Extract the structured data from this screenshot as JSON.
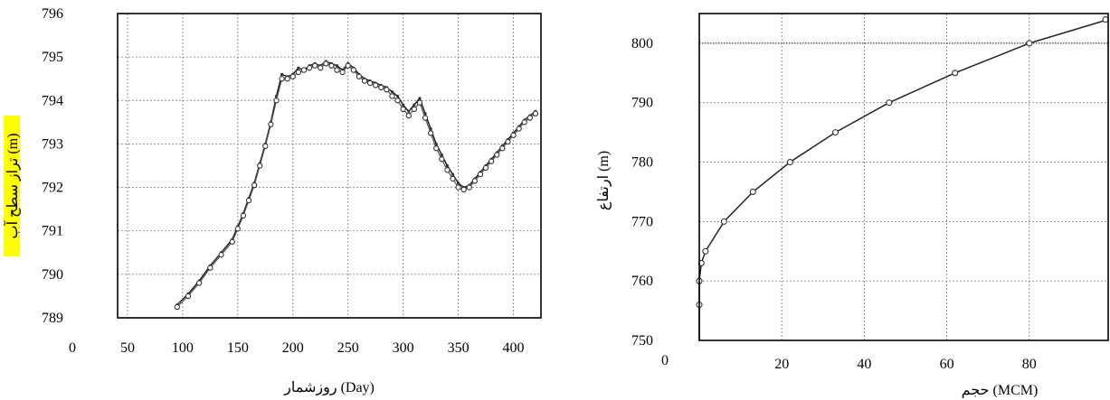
{
  "chart_data": [
    {
      "type": "line",
      "title": "",
      "xlabel": "روزشمار (Day)",
      "ylabel": "تراز سطح آب (m)",
      "ylabel_highlight": "#ffff00",
      "xlim": [
        0,
        425
      ],
      "ylim": [
        789,
        796
      ],
      "x_ticks": [
        0,
        50,
        100,
        150,
        200,
        250,
        300,
        350,
        400
      ],
      "y_ticks": [
        789,
        790,
        791,
        792,
        793,
        794,
        795,
        796
      ],
      "grid": true,
      "series": [
        {
          "x": [
            95,
            105,
            115,
            125,
            135,
            145,
            150,
            155,
            160,
            165,
            170,
            175,
            180,
            185,
            190,
            195,
            200,
            205,
            210,
            215,
            220,
            225,
            230,
            235,
            240,
            245,
            250,
            255,
            260,
            265,
            270,
            275,
            280,
            285,
            290,
            295,
            300,
            305,
            310,
            315,
            320,
            325,
            330,
            335,
            340,
            345,
            350,
            355,
            360,
            365,
            370,
            375,
            380,
            385,
            390,
            395,
            400,
            405,
            410,
            415,
            420
          ],
          "y": [
            789.3,
            789.55,
            789.85,
            790.2,
            790.5,
            790.8,
            791.1,
            791.4,
            791.75,
            792.1,
            792.55,
            793.0,
            793.5,
            794.1,
            794.6,
            794.55,
            794.6,
            794.75,
            794.7,
            794.8,
            794.85,
            794.8,
            794.9,
            794.85,
            794.8,
            794.7,
            794.85,
            794.75,
            794.6,
            794.5,
            794.45,
            794.4,
            794.35,
            794.3,
            794.2,
            794.1,
            793.9,
            793.75,
            793.9,
            794.05,
            793.7,
            793.35,
            793.0,
            792.75,
            792.5,
            792.3,
            792.1,
            792.0,
            792.05,
            792.2,
            792.35,
            792.5,
            792.65,
            792.8,
            792.95,
            793.1,
            793.25,
            793.4,
            793.55,
            793.65,
            793.75
          ],
          "style": "line-with-dots"
        },
        {
          "x": [
            95,
            105,
            115,
            125,
            135,
            145,
            150,
            155,
            160,
            165,
            170,
            175,
            180,
            185,
            190,
            195,
            200,
            205,
            210,
            215,
            220,
            225,
            230,
            235,
            240,
            245,
            250,
            255,
            260,
            265,
            270,
            275,
            280,
            285,
            290,
            295,
            300,
            305,
            310,
            315,
            320,
            325,
            330,
            335,
            340,
            345,
            350,
            355,
            360,
            365,
            370,
            375,
            380,
            385,
            390,
            395,
            400,
            405,
            410,
            415,
            420
          ],
          "y": [
            789.25,
            789.5,
            789.8,
            790.15,
            790.45,
            790.75,
            791.05,
            791.35,
            791.7,
            792.05,
            792.5,
            792.95,
            793.45,
            794.0,
            794.5,
            794.5,
            794.55,
            794.65,
            794.7,
            794.75,
            794.8,
            794.75,
            794.85,
            794.8,
            794.7,
            794.65,
            794.8,
            794.7,
            794.55,
            794.45,
            794.4,
            794.35,
            794.3,
            794.25,
            794.1,
            794.0,
            793.8,
            793.65,
            793.8,
            793.95,
            793.6,
            793.25,
            792.9,
            792.65,
            792.4,
            792.2,
            792.0,
            791.95,
            792.0,
            792.15,
            792.3,
            792.45,
            792.6,
            792.75,
            792.9,
            793.05,
            793.2,
            793.35,
            793.5,
            793.6,
            793.7
          ],
          "style": "open-markers"
        }
      ]
    },
    {
      "type": "line",
      "title": "",
      "xlabel": "حجم (MCM)",
      "ylabel": "ارتفاع (m)",
      "xlim": [
        0,
        100
      ],
      "ylim": [
        750,
        805
      ],
      "x_ticks": [
        0,
        20,
        40,
        60,
        80
      ],
      "y_ticks": [
        750,
        760,
        770,
        780,
        790,
        800
      ],
      "grid": true,
      "series": [
        {
          "x": [
            0,
            0,
            0,
            0.5,
            1.5,
            6,
            13,
            22,
            33,
            46,
            62,
            80,
            100
          ],
          "y": [
            750,
            756,
            760,
            763,
            765,
            770,
            775,
            780,
            785,
            790,
            795,
            800,
            804
          ],
          "style": "line-with-open-markers"
        }
      ]
    }
  ]
}
